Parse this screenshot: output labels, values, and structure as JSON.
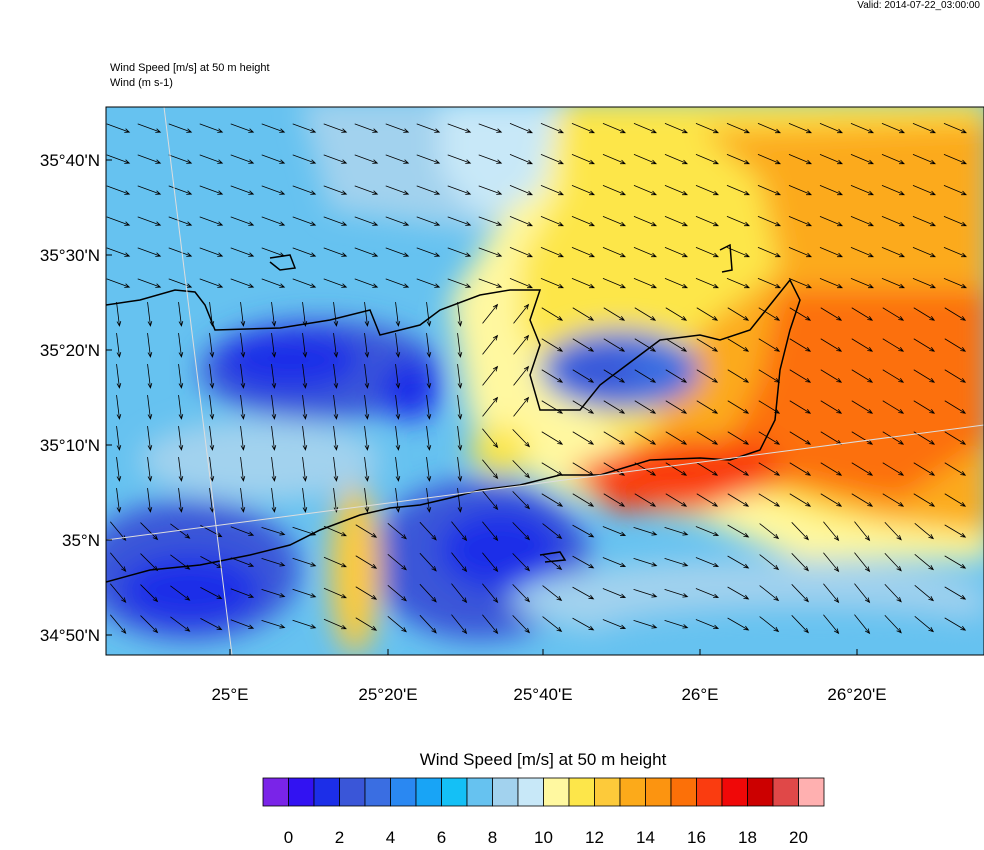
{
  "valid": "Valid: 2014-07-22_03:00:00",
  "title_lines": [
    "Wind Speed [m/s] at 50 m height",
    "Wind   (m s-1)"
  ],
  "lat_labels": [
    "35°40'N",
    "35°30'N",
    "35°20'N",
    "35°10'N",
    "35°N",
    "34°50'N"
  ],
  "lon_labels": [
    "25°E",
    "25°20'E",
    "25°40'E",
    "26°E",
    "26°20'E"
  ],
  "colorbar": {
    "title": "Wind Speed [m/s] at 50 m height",
    "colors": [
      "#7a24e8",
      "#3212f2",
      "#1c2ee8",
      "#3a56d8",
      "#3a6ee2",
      "#2a88f2",
      "#18a4f6",
      "#14c0f6",
      "#66c2f0",
      "#a2d2ee",
      "#c8e8f8",
      "#fff8a0",
      "#fde64a",
      "#fdca3a",
      "#fcaa1a",
      "#fc9410",
      "#fc7008",
      "#fa3c10",
      "#f00808",
      "#cc0000",
      "#e04848",
      "#ffb0b0"
    ],
    "labels": [
      0,
      2,
      4,
      6,
      8,
      10,
      12,
      14,
      16,
      18,
      20
    ]
  }
}
